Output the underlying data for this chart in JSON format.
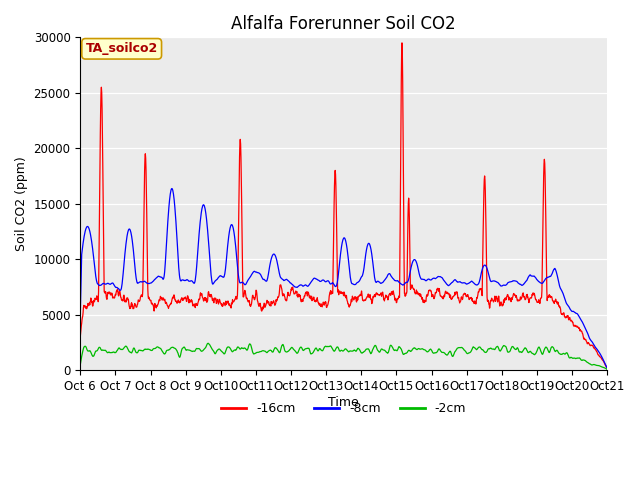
{
  "title": "Alfalfa Forerunner Soil CO2",
  "ylabel": "Soil CO2 (ppm)",
  "xlabel": "Time",
  "annotation_text": "TA_soilco2",
  "ylim": [
    0,
    30000
  ],
  "yticks": [
    0,
    5000,
    10000,
    15000,
    20000,
    25000,
    30000
  ],
  "xtick_labels": [
    "Oct 6",
    "Oct 7",
    "Oct 8",
    "Oct 9",
    "Oct 10",
    "Oct 11",
    "Oct 12",
    "Oct 13",
    "Oct 14",
    "Oct 15",
    "Oct 16",
    "Oct 17",
    "Oct 18",
    "Oct 19",
    "Oct 20",
    "Oct 21"
  ],
  "line_colors": [
    "#ff0000",
    "#0000ff",
    "#00bb00"
  ],
  "line_labels": [
    "-16cm",
    "-8cm",
    "-2cm"
  ],
  "bg_color": "#ebebeb",
  "title_fontsize": 12,
  "axis_label_fontsize": 9,
  "tick_fontsize": 8.5,
  "legend_fontsize": 9,
  "annotation_fontsize": 9,
  "annotation_color": "#aa0000",
  "annotation_bg": "#ffffcc",
  "annotation_border": "#cc9900"
}
